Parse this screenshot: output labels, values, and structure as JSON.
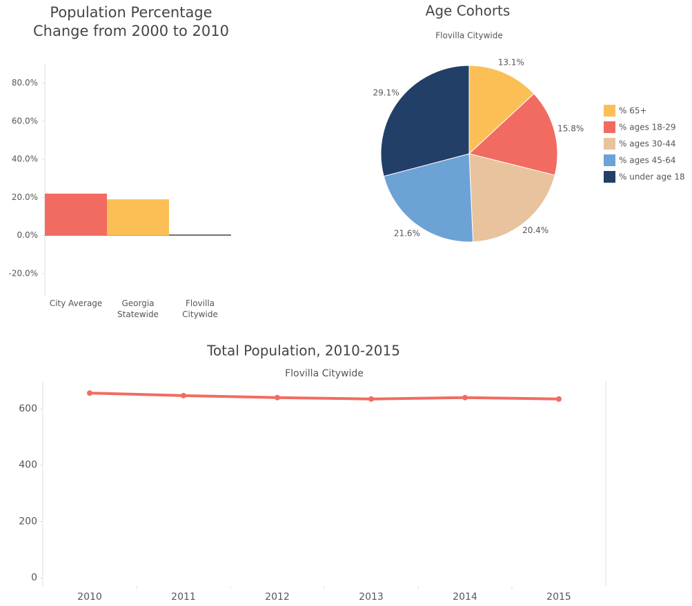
{
  "chart_data": [
    {
      "type": "bar",
      "title": "Population Percentage Change from 2000 to 2010",
      "categories": [
        "City Average",
        "Georgia Statewide",
        "Flovilla Citywide"
      ],
      "values": [
        22.0,
        19.0,
        0.5
      ],
      "colors": [
        "#f26b61",
        "#fcbf55",
        "#444444"
      ],
      "ylim": [
        -32,
        90
      ],
      "yticks": [
        {
          "value": -20,
          "label": "-20.0%"
        },
        {
          "value": 0,
          "label": "0.0%"
        },
        {
          "value": 20,
          "label": "20.0%"
        },
        {
          "value": 40,
          "label": "40.0%"
        },
        {
          "value": 60,
          "label": "60.0%"
        },
        {
          "value": 80,
          "label": "80.0%"
        }
      ]
    },
    {
      "type": "pie",
      "title": "Age Cohorts",
      "subtitle": "Flovilla Citywide",
      "categories": [
        "% 65+",
        "% ages 18-29",
        "% ages 30-44",
        "% ages 45-64",
        "% under age 18"
      ],
      "values": [
        13.1,
        15.8,
        20.4,
        21.6,
        29.1
      ],
      "value_labels": [
        "13.1%",
        "15.8%",
        "20.4%",
        "21.6%",
        "29.1%"
      ],
      "colors": [
        "#fcbf55",
        "#f26b61",
        "#e8c39e",
        "#6ca2d6",
        "#223f67"
      ],
      "legend": "right"
    },
    {
      "type": "line",
      "title": "Total Population, 2010-2015",
      "subtitle": "Flovilla Citywide",
      "categories": [
        "2010",
        "2011",
        "2012",
        "2013",
        "2014",
        "2015"
      ],
      "series": [
        {
          "name": "Total Population",
          "color": "#f26b61",
          "values": [
            656,
            647,
            640,
            635,
            640,
            635
          ]
        }
      ],
      "ylim": [
        -29,
        698
      ],
      "yticks": [
        0,
        200,
        400,
        600
      ]
    }
  ]
}
